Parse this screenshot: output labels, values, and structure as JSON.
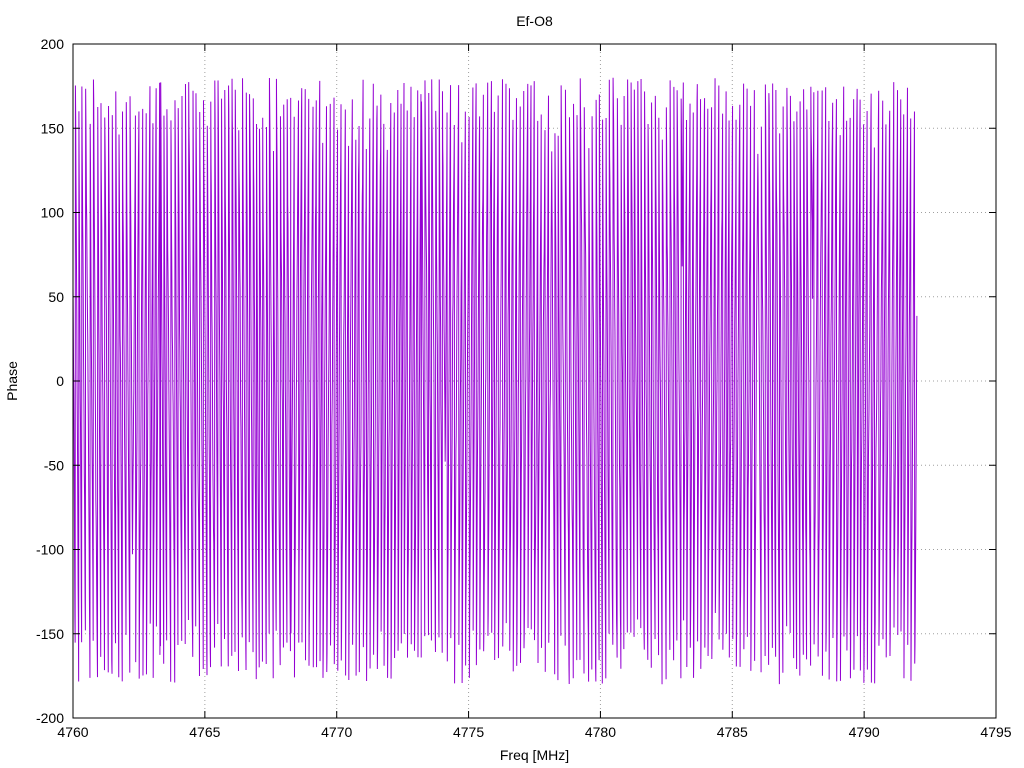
{
  "chart_data": {
    "type": "line",
    "title": "Ef-O8",
    "xlabel": "Freq [MHz]",
    "ylabel": "Phase",
    "xlim": [
      4760,
      4795
    ],
    "ylim": [
      -200,
      200
    ],
    "x_ticks": [
      4760,
      4765,
      4770,
      4775,
      4780,
      4785,
      4790,
      4795
    ],
    "y_ticks": [
      -200,
      -150,
      -100,
      -50,
      0,
      50,
      100,
      150,
      200
    ],
    "grid": true,
    "legend": "none",
    "series": [
      {
        "color": "#9400d3",
        "x_start": 4760,
        "x_end": 4792,
        "phase_min": -180,
        "phase_max": 180,
        "wraps_per_mhz": 7
      }
    ]
  }
}
